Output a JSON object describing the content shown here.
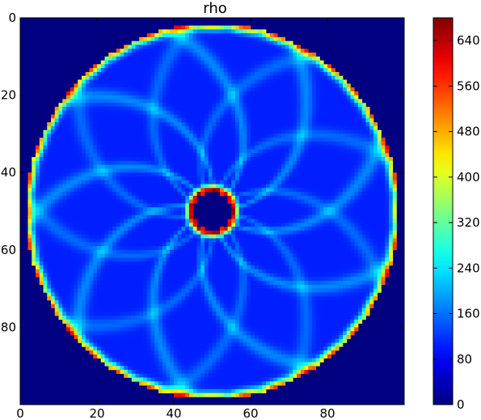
{
  "chart_data": {
    "type": "heatmap",
    "title": "rho",
    "xlabel": "",
    "ylabel": "",
    "grid_shape": [
      100,
      100
    ],
    "xlim": [
      0,
      100
    ],
    "ylim": [
      100,
      0
    ],
    "x_ticks": [
      0,
      20,
      40,
      60,
      80
    ],
    "y_ticks": [
      0,
      20,
      40,
      60,
      80
    ],
    "colormap": "jet",
    "colorbar": {
      "min": 0,
      "max": 680,
      "ticks": [
        0,
        80,
        160,
        240,
        320,
        400,
        480,
        560,
        640
      ]
    },
    "field": {
      "center": [
        50,
        50
      ],
      "outer_radius": 48.5,
      "inner_radius": 5.5,
      "background_value": 0,
      "base_value": 105,
      "outer_ring_peak": 560,
      "inner_ring_peak": 620
    }
  }
}
